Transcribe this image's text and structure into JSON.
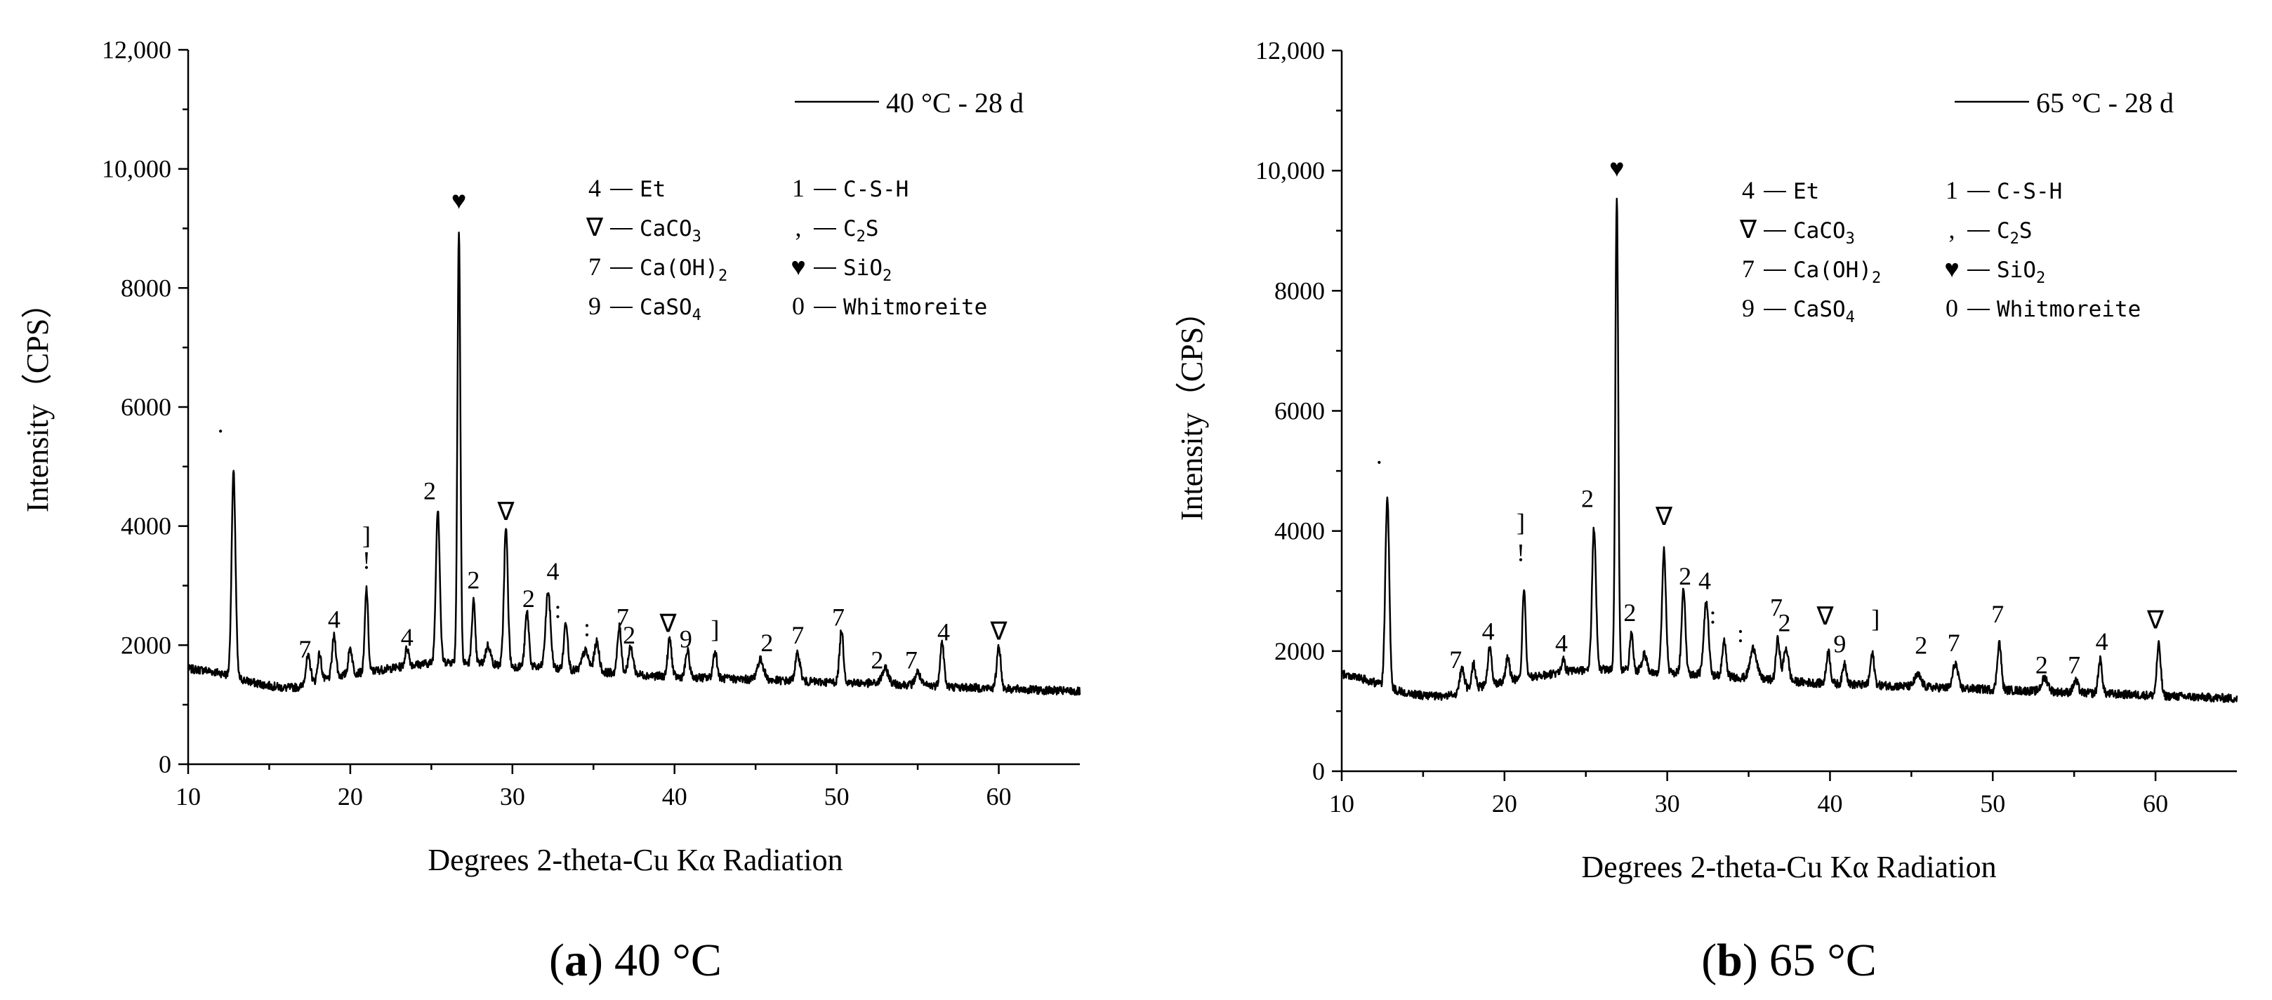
{
  "chart_data": [
    {
      "type": "line",
      "panel_label": "a",
      "caption": "40 °C",
      "legend": "40 °C - 28 d",
      "xlabel": "Degrees 2-theta-Cu Kα Radiation",
      "ylabel": "Intensity（CPS）",
      "xlim": [
        10,
        65
      ],
      "ylim": [
        0,
        12000
      ],
      "xticks": [
        10,
        20,
        30,
        40,
        50,
        60
      ],
      "yticks": [
        "0",
        "2000",
        "4000",
        "6000",
        "8000",
        "10,000",
        "12,000"
      ],
      "baseline": [
        [
          10,
          1600
        ],
        [
          11,
          1580
        ],
        [
          12,
          1530
        ],
        [
          13,
          1450
        ],
        [
          14,
          1370
        ],
        [
          15,
          1320
        ],
        [
          16,
          1280
        ],
        [
          17,
          1300
        ],
        [
          18,
          1380
        ],
        [
          19,
          1460
        ],
        [
          20,
          1520
        ],
        [
          21,
          1550
        ],
        [
          22,
          1590
        ],
        [
          23,
          1630
        ],
        [
          24,
          1670
        ],
        [
          25,
          1700
        ],
        [
          26,
          1720
        ],
        [
          27,
          1700
        ],
        [
          28,
          1690
        ],
        [
          29,
          1670
        ],
        [
          30,
          1640
        ],
        [
          31,
          1640
        ],
        [
          32,
          1620
        ],
        [
          33,
          1600
        ],
        [
          34,
          1570
        ],
        [
          35,
          1550
        ],
        [
          36,
          1540
        ],
        [
          37,
          1520
        ],
        [
          38,
          1500
        ],
        [
          39,
          1480
        ],
        [
          40,
          1470
        ],
        [
          41,
          1460
        ],
        [
          42,
          1450
        ],
        [
          43,
          1440
        ],
        [
          44,
          1430
        ],
        [
          45,
          1420
        ],
        [
          46,
          1410
        ],
        [
          47,
          1400
        ],
        [
          48,
          1390
        ],
        [
          49,
          1380
        ],
        [
          50,
          1380
        ],
        [
          51,
          1370
        ],
        [
          52,
          1360
        ],
        [
          53,
          1350
        ],
        [
          54,
          1340
        ],
        [
          55,
          1330
        ],
        [
          56,
          1320
        ],
        [
          57,
          1300
        ],
        [
          58,
          1290
        ],
        [
          59,
          1280
        ],
        [
          60,
          1270
        ],
        [
          61,
          1260
        ],
        [
          62,
          1250
        ],
        [
          63,
          1240
        ],
        [
          64,
          1230
        ],
        [
          65,
          1220
        ]
      ],
      "peaks": [
        {
          "x": 12.8,
          "y": 4900,
          "w": 0.12
        },
        {
          "x": 17.4,
          "y": 1800,
          "w": 0.15
        },
        {
          "x": 18.1,
          "y": 1850,
          "w": 0.12
        },
        {
          "x": 19.0,
          "y": 2150,
          "w": 0.12
        },
        {
          "x": 20.0,
          "y": 1950,
          "w": 0.12
        },
        {
          "x": 21.0,
          "y": 2950,
          "w": 0.1
        },
        {
          "x": 23.5,
          "y": 1950,
          "w": 0.12
        },
        {
          "x": 25.4,
          "y": 4300,
          "w": 0.12
        },
        {
          "x": 26.7,
          "y": 9000,
          "w": 0.09
        },
        {
          "x": 27.6,
          "y": 2750,
          "w": 0.1
        },
        {
          "x": 28.5,
          "y": 2000,
          "w": 0.15
        },
        {
          "x": 29.6,
          "y": 3950,
          "w": 0.12
        },
        {
          "x": 30.9,
          "y": 2550,
          "w": 0.12
        },
        {
          "x": 32.2,
          "y": 2900,
          "w": 0.15
        },
        {
          "x": 33.3,
          "y": 2400,
          "w": 0.12
        },
        {
          "x": 34.5,
          "y": 1900,
          "w": 0.2
        },
        {
          "x": 35.2,
          "y": 2050,
          "w": 0.15
        },
        {
          "x": 36.6,
          "y": 2300,
          "w": 0.12
        },
        {
          "x": 37.3,
          "y": 1950,
          "w": 0.15
        },
        {
          "x": 39.7,
          "y": 2100,
          "w": 0.12
        },
        {
          "x": 40.8,
          "y": 1900,
          "w": 0.12
        },
        {
          "x": 42.5,
          "y": 1900,
          "w": 0.12
        },
        {
          "x": 45.3,
          "y": 1750,
          "w": 0.2
        },
        {
          "x": 47.6,
          "y": 1850,
          "w": 0.15
        },
        {
          "x": 50.3,
          "y": 2250,
          "w": 0.12
        },
        {
          "x": 53.0,
          "y": 1600,
          "w": 0.2
        },
        {
          "x": 55.0,
          "y": 1550,
          "w": 0.15
        },
        {
          "x": 56.5,
          "y": 2050,
          "w": 0.12
        },
        {
          "x": 60.0,
          "y": 2000,
          "w": 0.12
        }
      ],
      "peak_labels": [
        {
          "x": 12.0,
          "y": 5450,
          "t": "·"
        },
        {
          "x": 17.2,
          "y": 1790,
          "t": "7"
        },
        {
          "x": 19.0,
          "y": 2290,
          "t": "4"
        },
        {
          "x": 21.0,
          "y": 3700,
          "t": "]"
        },
        {
          "x": 21.0,
          "y": 3280,
          "t": "!"
        },
        {
          "x": 23.5,
          "y": 1990,
          "t": "4"
        },
        {
          "x": 24.9,
          "y": 4450,
          "t": "2"
        },
        {
          "x": 26.7,
          "y": 9330,
          "t": "♥"
        },
        {
          "x": 27.6,
          "y": 2950,
          "t": "2"
        },
        {
          "x": 29.6,
          "y": 4100,
          "t": "∇"
        },
        {
          "x": 31.0,
          "y": 2640,
          "t": "2"
        },
        {
          "x": 32.5,
          "y": 3100,
          "t": "4"
        },
        {
          "x": 32.8,
          "y": 2460,
          "t": ":"
        },
        {
          "x": 34.6,
          "y": 2150,
          "t": ":"
        },
        {
          "x": 36.8,
          "y": 2330,
          "t": "7"
        },
        {
          "x": 37.2,
          "y": 2030,
          "t": "2"
        },
        {
          "x": 39.6,
          "y": 2220,
          "t": "∇"
        },
        {
          "x": 40.7,
          "y": 1960,
          "t": "9"
        },
        {
          "x": 42.5,
          "y": 2130,
          "t": "]"
        },
        {
          "x": 45.7,
          "y": 1900,
          "t": "2"
        },
        {
          "x": 47.6,
          "y": 2030,
          "t": "7"
        },
        {
          "x": 50.1,
          "y": 2330,
          "t": "7"
        },
        {
          "x": 52.5,
          "y": 1610,
          "t": "2"
        },
        {
          "x": 54.6,
          "y": 1610,
          "t": "7"
        },
        {
          "x": 56.6,
          "y": 2080,
          "t": "4"
        },
        {
          "x": 60.0,
          "y": 2090,
          "t": "∇"
        }
      ]
    },
    {
      "type": "line",
      "panel_label": "b",
      "caption": "65 °C",
      "legend": "65 °C - 28 d",
      "xlabel": "Degrees 2-theta-Cu Kα Radiation",
      "ylabel": "Intensity（CPS）",
      "xlim": [
        10,
        65
      ],
      "ylim": [
        0,
        12000
      ],
      "xticks": [
        10,
        20,
        30,
        40,
        50,
        60
      ],
      "yticks": [
        "0",
        "2000",
        "4000",
        "6000",
        "8000",
        "10,000",
        "12,000"
      ],
      "baseline": [
        [
          10,
          1620
        ],
        [
          11,
          1560
        ],
        [
          12,
          1480
        ],
        [
          13,
          1380
        ],
        [
          14,
          1300
        ],
        [
          15,
          1260
        ],
        [
          16,
          1240
        ],
        [
          17,
          1280
        ],
        [
          18,
          1360
        ],
        [
          19,
          1440
        ],
        [
          20,
          1500
        ],
        [
          21,
          1540
        ],
        [
          22,
          1580
        ],
        [
          23,
          1620
        ],
        [
          24,
          1660
        ],
        [
          25,
          1690
        ],
        [
          26,
          1700
        ],
        [
          27,
          1690
        ],
        [
          28,
          1680
        ],
        [
          29,
          1660
        ],
        [
          30,
          1640
        ],
        [
          31,
          1630
        ],
        [
          32,
          1610
        ],
        [
          33,
          1590
        ],
        [
          34,
          1570
        ],
        [
          35,
          1550
        ],
        [
          36,
          1530
        ],
        [
          37,
          1510
        ],
        [
          38,
          1490
        ],
        [
          39,
          1470
        ],
        [
          40,
          1460
        ],
        [
          41,
          1450
        ],
        [
          42,
          1440
        ],
        [
          43,
          1430
        ],
        [
          44,
          1420
        ],
        [
          45,
          1410
        ],
        [
          46,
          1400
        ],
        [
          47,
          1390
        ],
        [
          48,
          1380
        ],
        [
          49,
          1370
        ],
        [
          50,
          1360
        ],
        [
          51,
          1350
        ],
        [
          52,
          1340
        ],
        [
          53,
          1330
        ],
        [
          54,
          1320
        ],
        [
          55,
          1310
        ],
        [
          56,
          1300
        ],
        [
          57,
          1290
        ],
        [
          58,
          1280
        ],
        [
          59,
          1270
        ],
        [
          60,
          1260
        ],
        [
          61,
          1250
        ],
        [
          62,
          1240
        ],
        [
          63,
          1230
        ],
        [
          64,
          1220
        ],
        [
          65,
          1210
        ]
      ],
      "peaks": [
        {
          "x": 12.8,
          "y": 4600,
          "w": 0.12
        },
        {
          "x": 17.4,
          "y": 1700,
          "w": 0.15
        },
        {
          "x": 18.1,
          "y": 1800,
          "w": 0.12
        },
        {
          "x": 19.1,
          "y": 2050,
          "w": 0.12
        },
        {
          "x": 20.2,
          "y": 1900,
          "w": 0.12
        },
        {
          "x": 21.2,
          "y": 3050,
          "w": 0.1
        },
        {
          "x": 23.6,
          "y": 1850,
          "w": 0.12
        },
        {
          "x": 25.5,
          "y": 4050,
          "w": 0.12
        },
        {
          "x": 26.9,
          "y": 9600,
          "w": 0.09
        },
        {
          "x": 27.8,
          "y": 2300,
          "w": 0.1
        },
        {
          "x": 28.6,
          "y": 1950,
          "w": 0.15
        },
        {
          "x": 29.8,
          "y": 3700,
          "w": 0.12
        },
        {
          "x": 31.0,
          "y": 3000,
          "w": 0.12
        },
        {
          "x": 32.4,
          "y": 2800,
          "w": 0.15
        },
        {
          "x": 33.5,
          "y": 2150,
          "w": 0.12
        },
        {
          "x": 35.3,
          "y": 2050,
          "w": 0.2
        },
        {
          "x": 36.8,
          "y": 2200,
          "w": 0.12
        },
        {
          "x": 37.3,
          "y": 2050,
          "w": 0.15
        },
        {
          "x": 39.9,
          "y": 2000,
          "w": 0.12
        },
        {
          "x": 40.9,
          "y": 1800,
          "w": 0.12
        },
        {
          "x": 42.6,
          "y": 1950,
          "w": 0.12
        },
        {
          "x": 45.4,
          "y": 1600,
          "w": 0.2
        },
        {
          "x": 47.7,
          "y": 1800,
          "w": 0.15
        },
        {
          "x": 50.4,
          "y": 2150,
          "w": 0.12
        },
        {
          "x": 53.2,
          "y": 1550,
          "w": 0.2
        },
        {
          "x": 55.1,
          "y": 1500,
          "w": 0.15
        },
        {
          "x": 56.6,
          "y": 1850,
          "w": 0.12
        },
        {
          "x": 60.2,
          "y": 2100,
          "w": 0.12
        }
      ],
      "peak_labels": [
        {
          "x": 12.3,
          "y": 5000,
          "t": "·"
        },
        {
          "x": 17.0,
          "y": 1720,
          "t": "7"
        },
        {
          "x": 19.0,
          "y": 2190,
          "t": "4"
        },
        {
          "x": 21.0,
          "y": 4000,
          "t": "]"
        },
        {
          "x": 21.0,
          "y": 3500,
          "t": "!"
        },
        {
          "x": 23.5,
          "y": 1990,
          "t": "4"
        },
        {
          "x": 25.1,
          "y": 4400,
          "t": "2"
        },
        {
          "x": 26.9,
          "y": 9900,
          "t": "♥"
        },
        {
          "x": 27.7,
          "y": 2500,
          "t": "2"
        },
        {
          "x": 29.8,
          "y": 4100,
          "t": "∇"
        },
        {
          "x": 31.1,
          "y": 3110,
          "t": "2"
        },
        {
          "x": 32.3,
          "y": 3030,
          "t": "4"
        },
        {
          "x": 32.8,
          "y": 2460,
          "t": ":"
        },
        {
          "x": 34.5,
          "y": 2150,
          "t": ":"
        },
        {
          "x": 36.7,
          "y": 2590,
          "t": "7"
        },
        {
          "x": 37.2,
          "y": 2330,
          "t": "2"
        },
        {
          "x": 39.7,
          "y": 2440,
          "t": "∇"
        },
        {
          "x": 40.6,
          "y": 1980,
          "t": "9"
        },
        {
          "x": 42.8,
          "y": 2400,
          "t": "]"
        },
        {
          "x": 45.6,
          "y": 1960,
          "t": "2"
        },
        {
          "x": 47.6,
          "y": 2000,
          "t": "7"
        },
        {
          "x": 50.3,
          "y": 2480,
          "t": "7"
        },
        {
          "x": 53.0,
          "y": 1630,
          "t": "2"
        },
        {
          "x": 55.0,
          "y": 1630,
          "t": "7"
        },
        {
          "x": 56.7,
          "y": 2020,
          "t": "4"
        },
        {
          "x": 60.0,
          "y": 2380,
          "t": "∇"
        }
      ]
    }
  ],
  "phase_key": [
    {
      "sym": "4",
      "name": "Et"
    },
    {
      "sym": "1",
      "name": "C-S-H"
    },
    {
      "sym": "∇",
      "name": "CaCO",
      "sub": "3"
    },
    {
      "sym": ",",
      "name": "C",
      "sub": "2",
      "tail": "S"
    },
    {
      "sym": "7",
      "name": "Ca(OH)",
      "sub": "2"
    },
    {
      "sym": "♥",
      "name": "SiO",
      "sub": "2"
    },
    {
      "sym": "9",
      "name": "CaSO",
      "sub": "4"
    },
    {
      "sym": "0",
      "name": "Whitmoreite"
    }
  ],
  "colors": {
    "ink": "#000000",
    "background": "#ffffff"
  }
}
